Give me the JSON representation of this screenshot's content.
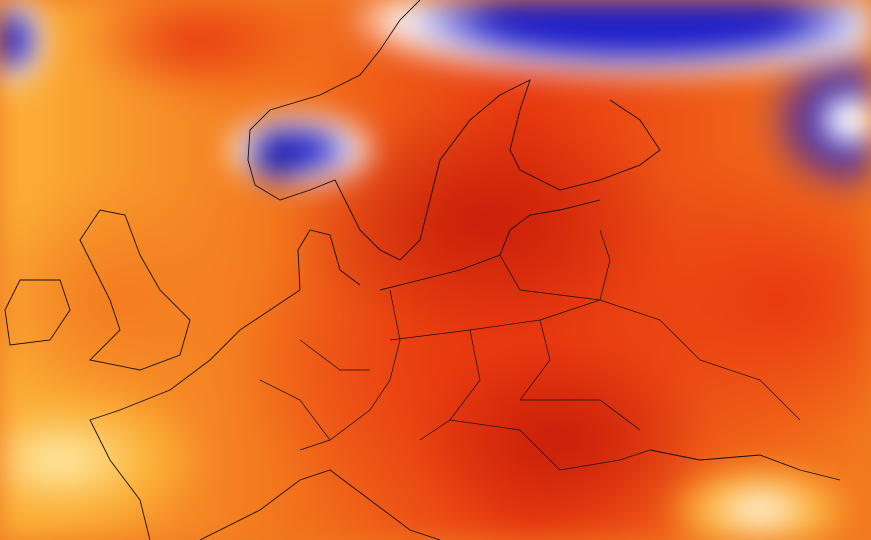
{
  "map": {
    "colors": {
      "hot_deep": "#c81e0a",
      "hot": "#e8380f",
      "warm": "#f47a1e",
      "mild": "#fbb23a",
      "neutral": "#fff0b0",
      "white": "#ffffff",
      "cold": "#1e1ec8",
      "cold_deep": "#221a66",
      "coastline": "#111111"
    }
  }
}
